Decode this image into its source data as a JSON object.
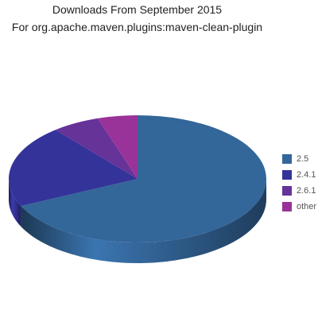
{
  "chart_data": {
    "type": "pie",
    "title": "Downloads From September 2015",
    "subtitle": "For org.apache.maven.plugins:maven-clean-plugin",
    "categories": [
      "2.5",
      "2.4.1",
      "2.6.1",
      "other"
    ],
    "values": [
      68,
      21,
      6,
      5
    ],
    "colors": [
      "#336699",
      "#333399",
      "#663399",
      "#993399"
    ],
    "legend_position": "right"
  }
}
